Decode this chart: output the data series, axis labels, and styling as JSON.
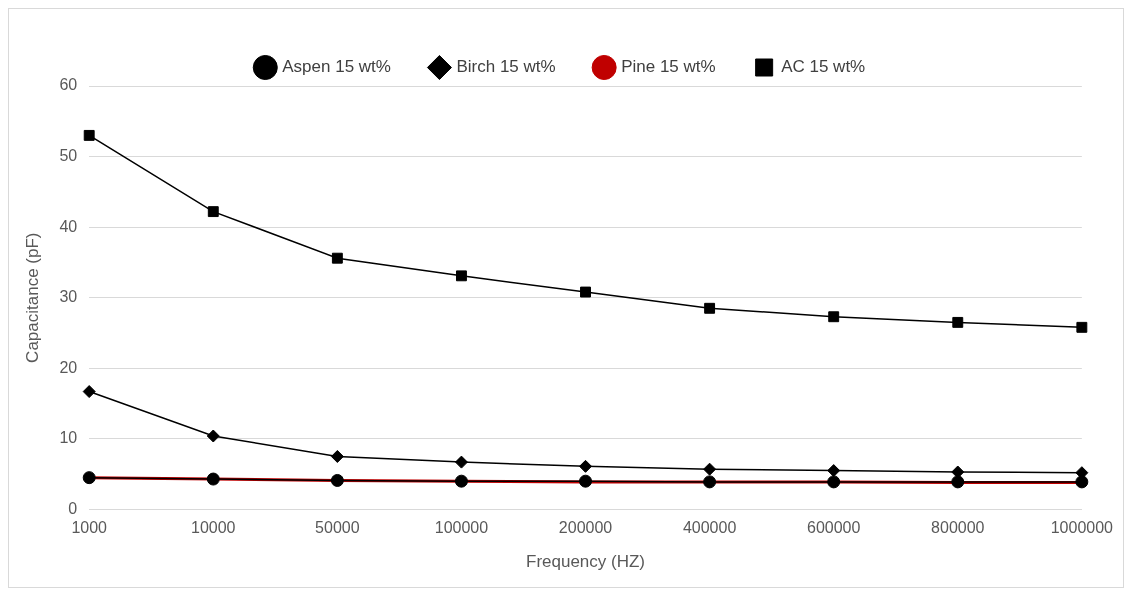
{
  "chart_data": {
    "type": "line",
    "xlabel": "Frequency (HZ)",
    "ylabel": "Capacitance (pF)",
    "categories": [
      "1000",
      "10000",
      "50000",
      "100000",
      "200000",
      "400000",
      "600000",
      "800000",
      "1000000"
    ],
    "ylim": [
      0,
      60
    ],
    "yticks": [
      0,
      10,
      20,
      30,
      40,
      50,
      60
    ],
    "grid": "y",
    "legend": "top",
    "series": [
      {
        "name": "Aspen 15 wt%",
        "color": "#000000",
        "marker": "circle",
        "values": [
          4.5,
          4.3,
          4.1,
          4.0,
          4.0,
          3.9,
          3.9,
          3.9,
          3.9
        ]
      },
      {
        "name": "Birch 15 wt%",
        "color": "#000000",
        "marker": "diamond",
        "values": [
          16.7,
          10.4,
          7.5,
          6.7,
          6.1,
          5.7,
          5.5,
          5.3,
          5.2
        ]
      },
      {
        "name": "Pine 15 wt%",
        "color": "#c00000",
        "marker": "none",
        "values": [
          4.5,
          4.3,
          4.1,
          4.0,
          3.9,
          3.9,
          3.9,
          3.8,
          3.8
        ]
      },
      {
        "name": "AC 15 wt%",
        "color": "#000000",
        "marker": "square",
        "values": [
          53,
          42.2,
          35.6,
          33.1,
          30.8,
          28.5,
          27.3,
          26.5,
          25.8
        ]
      }
    ]
  }
}
